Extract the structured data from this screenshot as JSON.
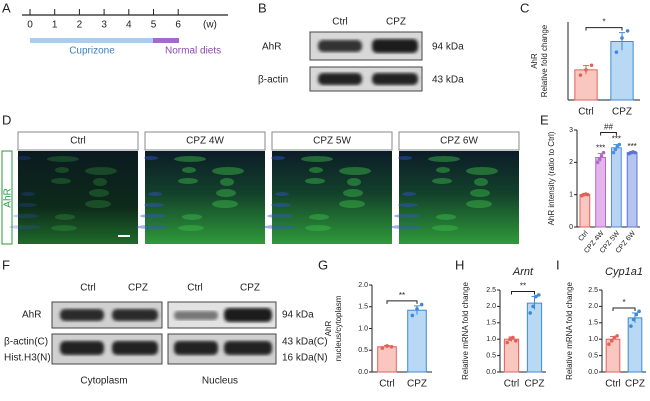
{
  "panel_labels": [
    "A",
    "B",
    "C",
    "D",
    "E",
    "F",
    "G",
    "H",
    "I"
  ],
  "timeline": {
    "ticks": [
      0,
      1,
      2,
      3,
      4,
      5,
      6
    ],
    "unit": "(w)",
    "phases": [
      "Cuprizone",
      "Normal diets"
    ]
  },
  "blot_b": {
    "columns": [
      "Ctrl",
      "CPZ"
    ],
    "rows": [
      "AhR",
      "β-actin"
    ],
    "sizes": [
      "94 kDa",
      "43 kDa"
    ]
  },
  "images_d": {
    "label": "AhR",
    "columns": [
      "Ctrl",
      "CPZ 4W",
      "CPZ 5W",
      "CPZ 6W"
    ]
  },
  "blot_f": {
    "columns": [
      "Ctrl",
      "CPZ",
      "Ctrl",
      "CPZ"
    ],
    "rows": [
      "AhR",
      "β-actin(C)",
      "Hist.H3(N)"
    ],
    "sizes": [
      "94 kDa",
      "43 kDa(C)",
      "16 kDa(N)"
    ],
    "fractions": [
      "Cytoplasm",
      "Nucleus"
    ]
  },
  "chart_data": [
    {
      "type": "bar",
      "y_label": [
        "AhR",
        "Relative fold change"
      ],
      "categories": [
        "Ctrl",
        "CPZ"
      ],
      "values": [
        0.85,
        1.65
      ],
      "errors": [
        0.12,
        0.25
      ],
      "points": [
        [
          0.7,
          0.85,
          0.98
        ],
        [
          1.35,
          1.75,
          1.95
        ]
      ],
      "colors": [
        "#f9c6c0",
        "#b9d8f3"
      ],
      "edge_colors": [
        "#e0625a",
        "#3d8ad6"
      ],
      "ylim": [
        0,
        2.2
      ],
      "bracket_label": "*"
    },
    {
      "type": "bar",
      "y_label": [
        "AhR intensity (ratio to Ctrl)"
      ],
      "categories": [
        "Ctrl",
        "CPZ 4W",
        "CPZ 5W",
        "CPZ 6W"
      ],
      "values": [
        1.0,
        2.15,
        2.45,
        2.3
      ],
      "errors": [
        0.03,
        0.12,
        0.1,
        0.03
      ],
      "points": [
        [
          0.97,
          1.0,
          1.02,
          1.0
        ],
        [
          2.0,
          2.1,
          2.2,
          2.3
        ],
        [
          2.3,
          2.4,
          2.5,
          2.55
        ],
        [
          2.27,
          2.3,
          2.32,
          2.3
        ]
      ],
      "colors": [
        "#f9c6c0",
        "#e4b5ec",
        "#b9d3f5",
        "#b4c3ef"
      ],
      "edge_colors": [
        "#e0625a",
        "#b06bc9",
        "#4b8fe0",
        "#5e73d6"
      ],
      "ylim": [
        0,
        3
      ],
      "yticks": [
        0,
        1,
        2,
        3
      ],
      "bar_annotations": [
        null,
        "***",
        "***",
        "***"
      ],
      "bracket_label": "##"
    },
    {
      "type": "bar",
      "y_label": [
        "AhR",
        "nucleus/cytoplasm"
      ],
      "categories": [
        "Ctrl",
        "CPZ"
      ],
      "values": [
        0.58,
        1.42
      ],
      "errors": [
        0.03,
        0.1
      ],
      "points": [
        [
          0.55,
          0.6,
          0.58
        ],
        [
          1.3,
          1.45,
          1.55
        ]
      ],
      "colors": [
        "#f9c6c0",
        "#b9d8f3"
      ],
      "edge_colors": [
        "#e0625a",
        "#3d8ad6"
      ],
      "ylim": [
        0,
        2.0
      ],
      "yticks": [
        {
          "value": 0,
          "label": "0.0"
        },
        0.5,
        {
          "value": 1,
          "label": "1.0"
        },
        1.5,
        {
          "value": 2,
          "label": "2.0"
        }
      ],
      "bracket_label": "**"
    },
    {
      "type": "bar",
      "title": "Arnt",
      "y_label": [
        "Relative mRNA fold change"
      ],
      "categories": [
        "Ctrl",
        "CPZ"
      ],
      "values": [
        1.0,
        2.1
      ],
      "errors": [
        0.07,
        0.2
      ],
      "points": [
        [
          0.9,
          1.0,
          1.05,
          0.95
        ],
        [
          1.8,
          2.0,
          2.3,
          2.35
        ]
      ],
      "colors": [
        "#f9c6c0",
        "#b9d8f3"
      ],
      "edge_colors": [
        "#e0625a",
        "#3d8ad6"
      ],
      "ylim": [
        0,
        2.5
      ],
      "yticks": [
        {
          "value": 0,
          "label": "0.0"
        },
        0.5,
        {
          "value": 1,
          "label": "1.0"
        },
        1.5,
        {
          "value": 2,
          "label": "2.0"
        },
        2.5
      ],
      "bracket_label": "**"
    },
    {
      "type": "bar",
      "title": "Cyp1a1",
      "y_label": [
        "Relative mRNA fold change"
      ],
      "categories": [
        "Ctrl",
        "CPZ"
      ],
      "values": [
        1.0,
        1.65
      ],
      "errors": [
        0.08,
        0.15
      ],
      "points": [
        [
          0.85,
          0.95,
          1.05,
          1.1
        ],
        [
          1.4,
          1.6,
          1.75,
          1.85
        ]
      ],
      "colors": [
        "#f9c6c0",
        "#b9d8f3"
      ],
      "edge_colors": [
        "#e0625a",
        "#3d8ad6"
      ],
      "ylim": [
        0,
        2.5
      ],
      "yticks": [
        {
          "value": 0,
          "label": "0.0"
        },
        0.5,
        {
          "value": 1,
          "label": "1.0"
        },
        1.5,
        {
          "value": 2,
          "label": "2.0"
        },
        2.5
      ],
      "bracket_label": "*"
    }
  ]
}
